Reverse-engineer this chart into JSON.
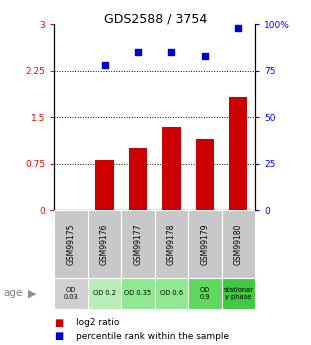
{
  "title": "GDS2588 / 3754",
  "samples": [
    "GSM99175",
    "GSM99176",
    "GSM99177",
    "GSM99178",
    "GSM99179",
    "GSM99180"
  ],
  "log2_ratio": [
    0.0,
    0.82,
    1.0,
    1.35,
    1.15,
    1.82
  ],
  "percentile_rank": [
    0.0,
    78,
    85,
    85,
    83,
    98
  ],
  "bar_color": "#cc0000",
  "dot_color": "#0000cc",
  "ylim_left": [
    0,
    3
  ],
  "ylim_right": [
    0,
    100
  ],
  "yticks_left": [
    0,
    0.75,
    1.5,
    2.25,
    3
  ],
  "yticks_right": [
    0,
    25,
    50,
    75,
    100
  ],
  "ytick_labels_left": [
    "0",
    "0.75",
    "1.5",
    "2.25",
    "3"
  ],
  "ytick_labels_right": [
    "0",
    "25",
    "50",
    "75",
    "100%"
  ],
  "hlines": [
    0.75,
    1.5,
    2.25
  ],
  "age_labels": [
    "OD\n0.03",
    "OD 0.2",
    "OD 0.35",
    "OD 0.6",
    "OD\n0.9",
    "stationar\ny phase"
  ],
  "age_bg_colors": [
    "#d0d0d0",
    "#b8eeb8",
    "#90e890",
    "#90e890",
    "#60d860",
    "#40c840"
  ],
  "sample_bg_color": "#c8c8c8",
  "legend_log2_color": "#cc0000",
  "legend_pct_color": "#0000cc",
  "title_fontsize": 9,
  "bar_width": 0.55
}
